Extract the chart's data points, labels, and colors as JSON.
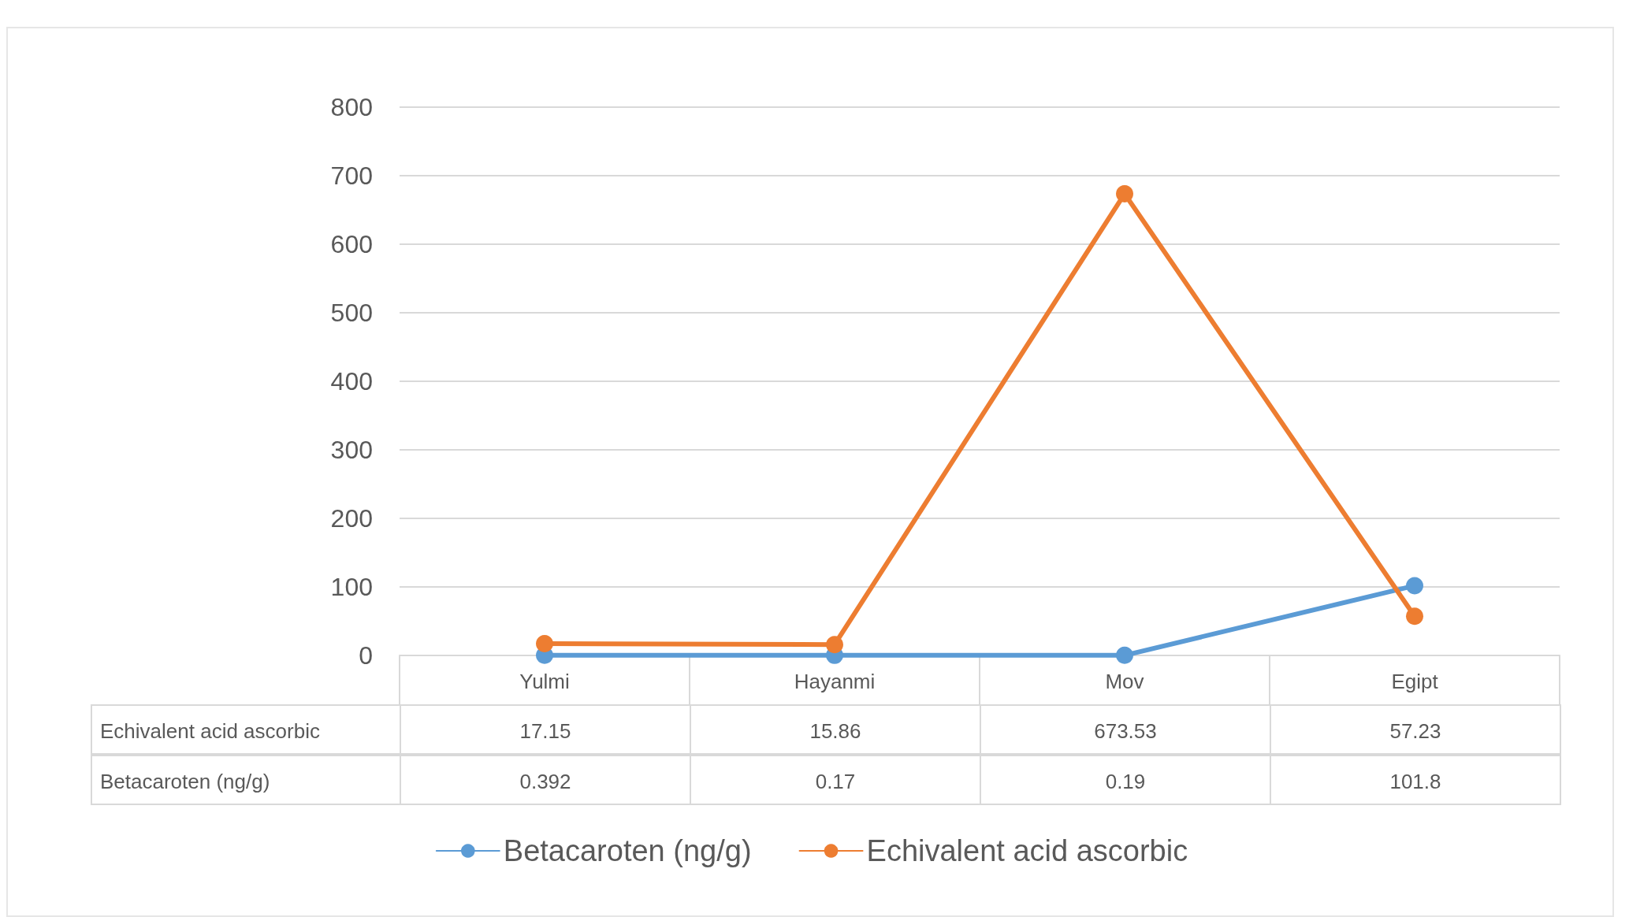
{
  "chart_data": {
    "type": "line",
    "categories": [
      "Yulmi",
      "Hayanmi",
      "Mov",
      "Egipt"
    ],
    "series": [
      {
        "name": "Betacaroten (ng/g)",
        "color": "#5b9bd5",
        "values": [
          0.392,
          0.17,
          0.19,
          101.8
        ]
      },
      {
        "name": "Echivalent acid ascorbic",
        "color": "#ed7d31",
        "values": [
          17.15,
          15.86,
          673.53,
          57.23
        ]
      }
    ],
    "ylim": [
      0,
      800
    ],
    "yticks": [
      0,
      100,
      200,
      300,
      400,
      500,
      600,
      700,
      800
    ],
    "grid": "y",
    "legend": "bottom",
    "marker": "circle",
    "data_labels": true
  }
}
